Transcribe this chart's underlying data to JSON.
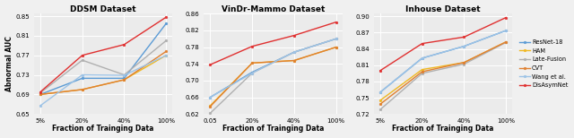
{
  "subplots": [
    {
      "title": "DDSM Dataset",
      "xlabel": "Fraction of Trainging Data",
      "ylabel": "Abnormal AUC",
      "xticks": [
        "5%",
        "20%",
        "40%",
        "100%"
      ],
      "ylim": [
        0.65,
        0.855
      ],
      "yticks": [
        0.65,
        0.69,
        0.73,
        0.77,
        0.81,
        0.85
      ],
      "series": {
        "ResNet-18": [
          0.69,
          0.723,
          0.723,
          0.835
        ],
        "HAM": [
          0.69,
          0.7,
          0.72,
          0.77
        ],
        "Late-Fusion": [
          0.693,
          0.76,
          0.73,
          0.8
        ],
        "CVT": [
          0.69,
          0.7,
          0.72,
          0.778
        ],
        "Wang et al.": [
          0.667,
          0.73,
          0.729,
          0.77
        ],
        "DisAsymNet": [
          0.695,
          0.77,
          0.792,
          0.848
        ]
      }
    },
    {
      "title": "VinDr-Mammo Dataset",
      "xlabel": "Fraction of Trainging Data",
      "ylabel": "",
      "xticks": [
        "0.05",
        "20%",
        "40%",
        "100%"
      ],
      "ylim": [
        0.62,
        0.86
      ],
      "yticks": [
        0.62,
        0.66,
        0.7,
        0.74,
        0.78,
        0.82,
        0.86
      ],
      "series": {
        "ResNet-18": [
          0.66,
          0.72,
          0.768,
          0.8
        ],
        "HAM": [
          0.64,
          0.742,
          0.748,
          0.78
        ],
        "Late-Fusion": [
          0.622,
          0.718,
          0.768,
          0.8
        ],
        "CVT": [
          0.638,
          0.742,
          0.748,
          0.78
        ],
        "Wang et al.": [
          0.66,
          0.718,
          0.768,
          0.8
        ],
        "DisAsymNet": [
          0.738,
          0.782,
          0.808,
          0.84
        ]
      }
    },
    {
      "title": "Inhouse Dataset",
      "xlabel": "Fraction of Trainging Data",
      "ylabel": "",
      "xticks": [
        "5%",
        "20%",
        "40%",
        "100%"
      ],
      "ylim": [
        0.72,
        0.905
      ],
      "yticks": [
        0.72,
        0.75,
        0.78,
        0.81,
        0.84,
        0.87,
        0.9
      ],
      "series": {
        "ResNet-18": [
          0.76,
          0.823,
          0.845,
          0.874
        ],
        "HAM": [
          0.745,
          0.802,
          0.815,
          0.853
        ],
        "Late-Fusion": [
          0.728,
          0.795,
          0.812,
          0.852
        ],
        "CVT": [
          0.738,
          0.798,
          0.815,
          0.853
        ],
        "Wang et al.": [
          0.76,
          0.823,
          0.845,
          0.874
        ],
        "DisAsymNet": [
          0.8,
          0.85,
          0.862,
          0.898
        ]
      }
    }
  ],
  "colors": {
    "ResNet-18": "#5b9bd5",
    "HAM": "#f0b822",
    "Late-Fusion": "#b0b0b0",
    "CVT": "#e08030",
    "Wang et al.": "#9dc3e6",
    "DisAsymNet": "#e03030"
  },
  "legend_order": [
    "ResNet-18",
    "HAM",
    "Late-Fusion",
    "CVT",
    "Wang et al.",
    "DisAsymNet"
  ],
  "bg_color": "#ebebeb",
  "fig_bg": "#f0f0f0"
}
